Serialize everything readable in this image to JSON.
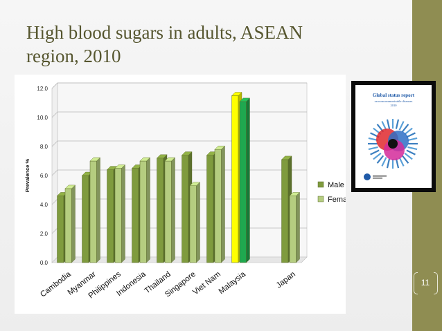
{
  "slide": {
    "title": "High blood sugars in adults, ASEAN region, 2010",
    "page_number": "11"
  },
  "cover": {
    "title": "Global status report",
    "subtitle": "on noncommunicable diseases",
    "year": "2010"
  },
  "colors": {
    "male": "#7f9b3e",
    "female": "#b5cd80",
    "highlight_male": "#ffff00",
    "highlight_female": "#1fa84f",
    "sidebar": "#8f8d52",
    "title_text": "#56562f"
  },
  "chart_data": {
    "type": "bar",
    "title": "",
    "xlabel": "",
    "ylabel": "Prevalence %",
    "ylim": [
      0,
      12
    ],
    "yticks": [
      "0.0",
      "2.0",
      "4.0",
      "6.0",
      "8.0",
      "10.0",
      "12.0"
    ],
    "grid": true,
    "legend": "right",
    "categories": [
      "Cambodia",
      "Myanmar",
      "Philippines",
      "Indonesia",
      "Thailand",
      "Singapore",
      "Viet Nam",
      "Malaysia",
      "",
      "Japan"
    ],
    "series": [
      {
        "name": "Male",
        "values": [
          4.6,
          6.0,
          6.4,
          6.5,
          7.2,
          7.4,
          7.4,
          11.5,
          null,
          7.1
        ]
      },
      {
        "name": "Female",
        "values": [
          5.1,
          7.0,
          6.5,
          7.0,
          7.0,
          5.3,
          7.8,
          11.1,
          null,
          4.6
        ]
      }
    ],
    "highlight_category": "Malaysia"
  }
}
